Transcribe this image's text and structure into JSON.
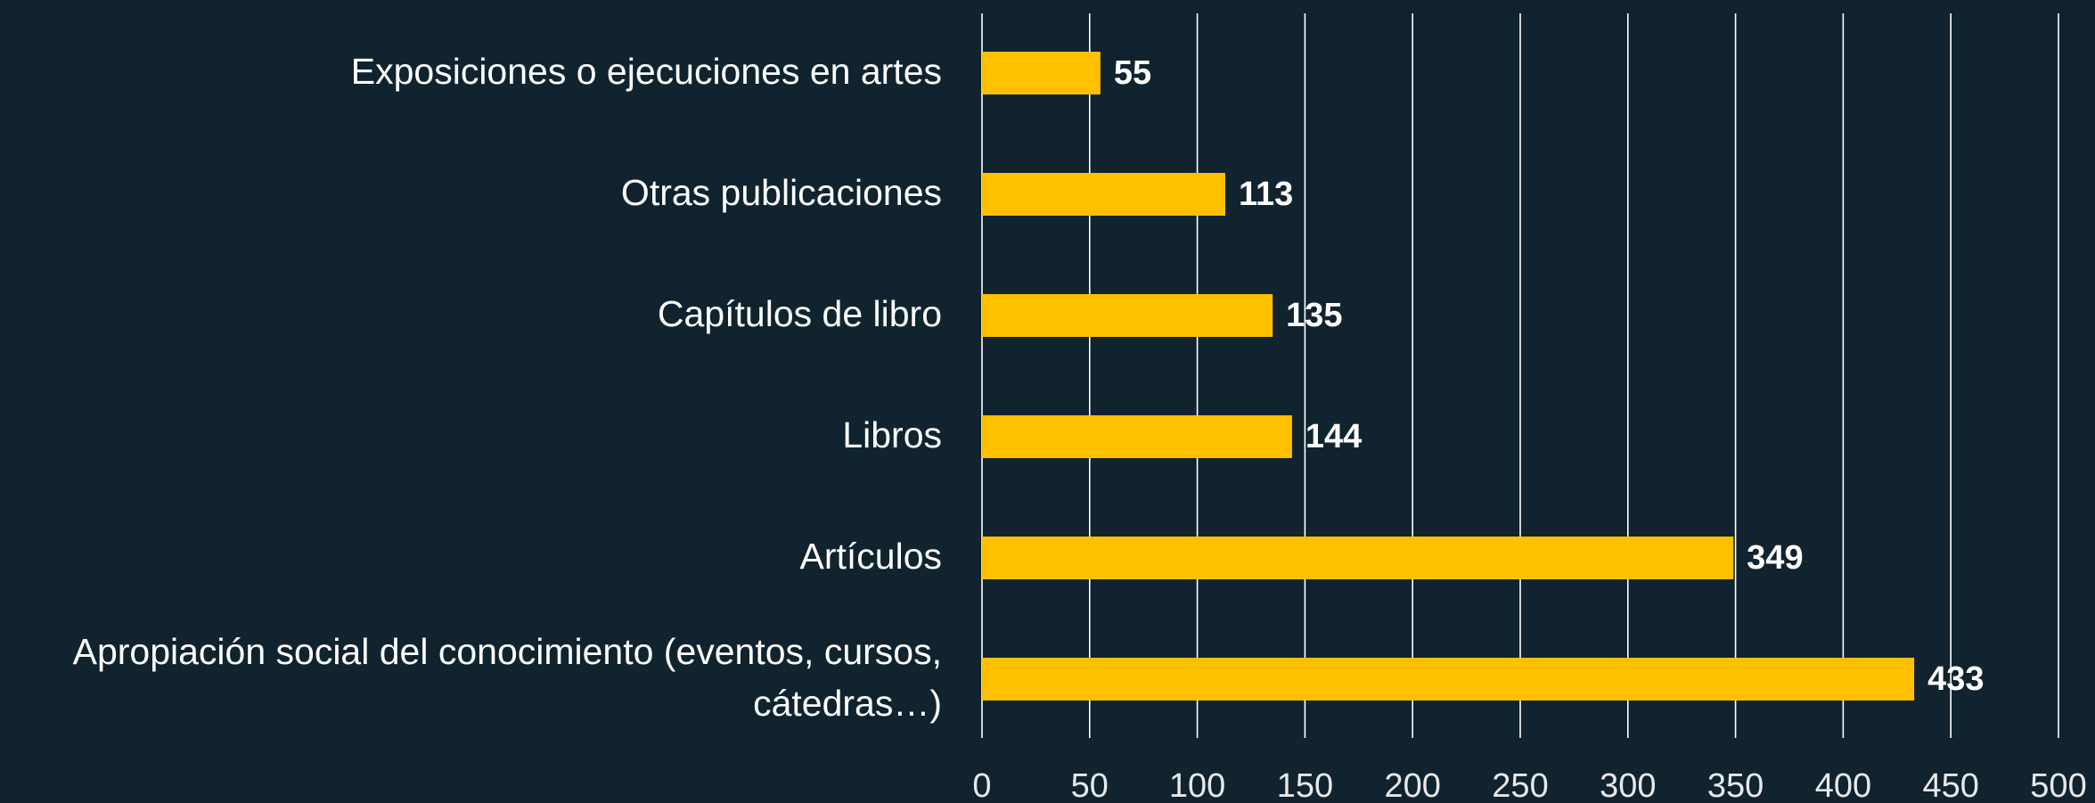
{
  "chart_data": {
    "type": "bar",
    "orientation": "horizontal",
    "categories": [
      "Exposiciones o ejecuciones en artes",
      "Otras publicaciones",
      "Capítulos de libro",
      "Libros",
      "Artículos",
      "Apropiación social del conocimiento (eventos, cursos, cátedras…)"
    ],
    "values": [
      55,
      113,
      135,
      144,
      349,
      433
    ],
    "color": "#ffc000",
    "xlim": [
      0,
      500
    ],
    "xticks": [
      0,
      50,
      100,
      150,
      200,
      250,
      300,
      350,
      400,
      450,
      500
    ],
    "grid": true
  }
}
